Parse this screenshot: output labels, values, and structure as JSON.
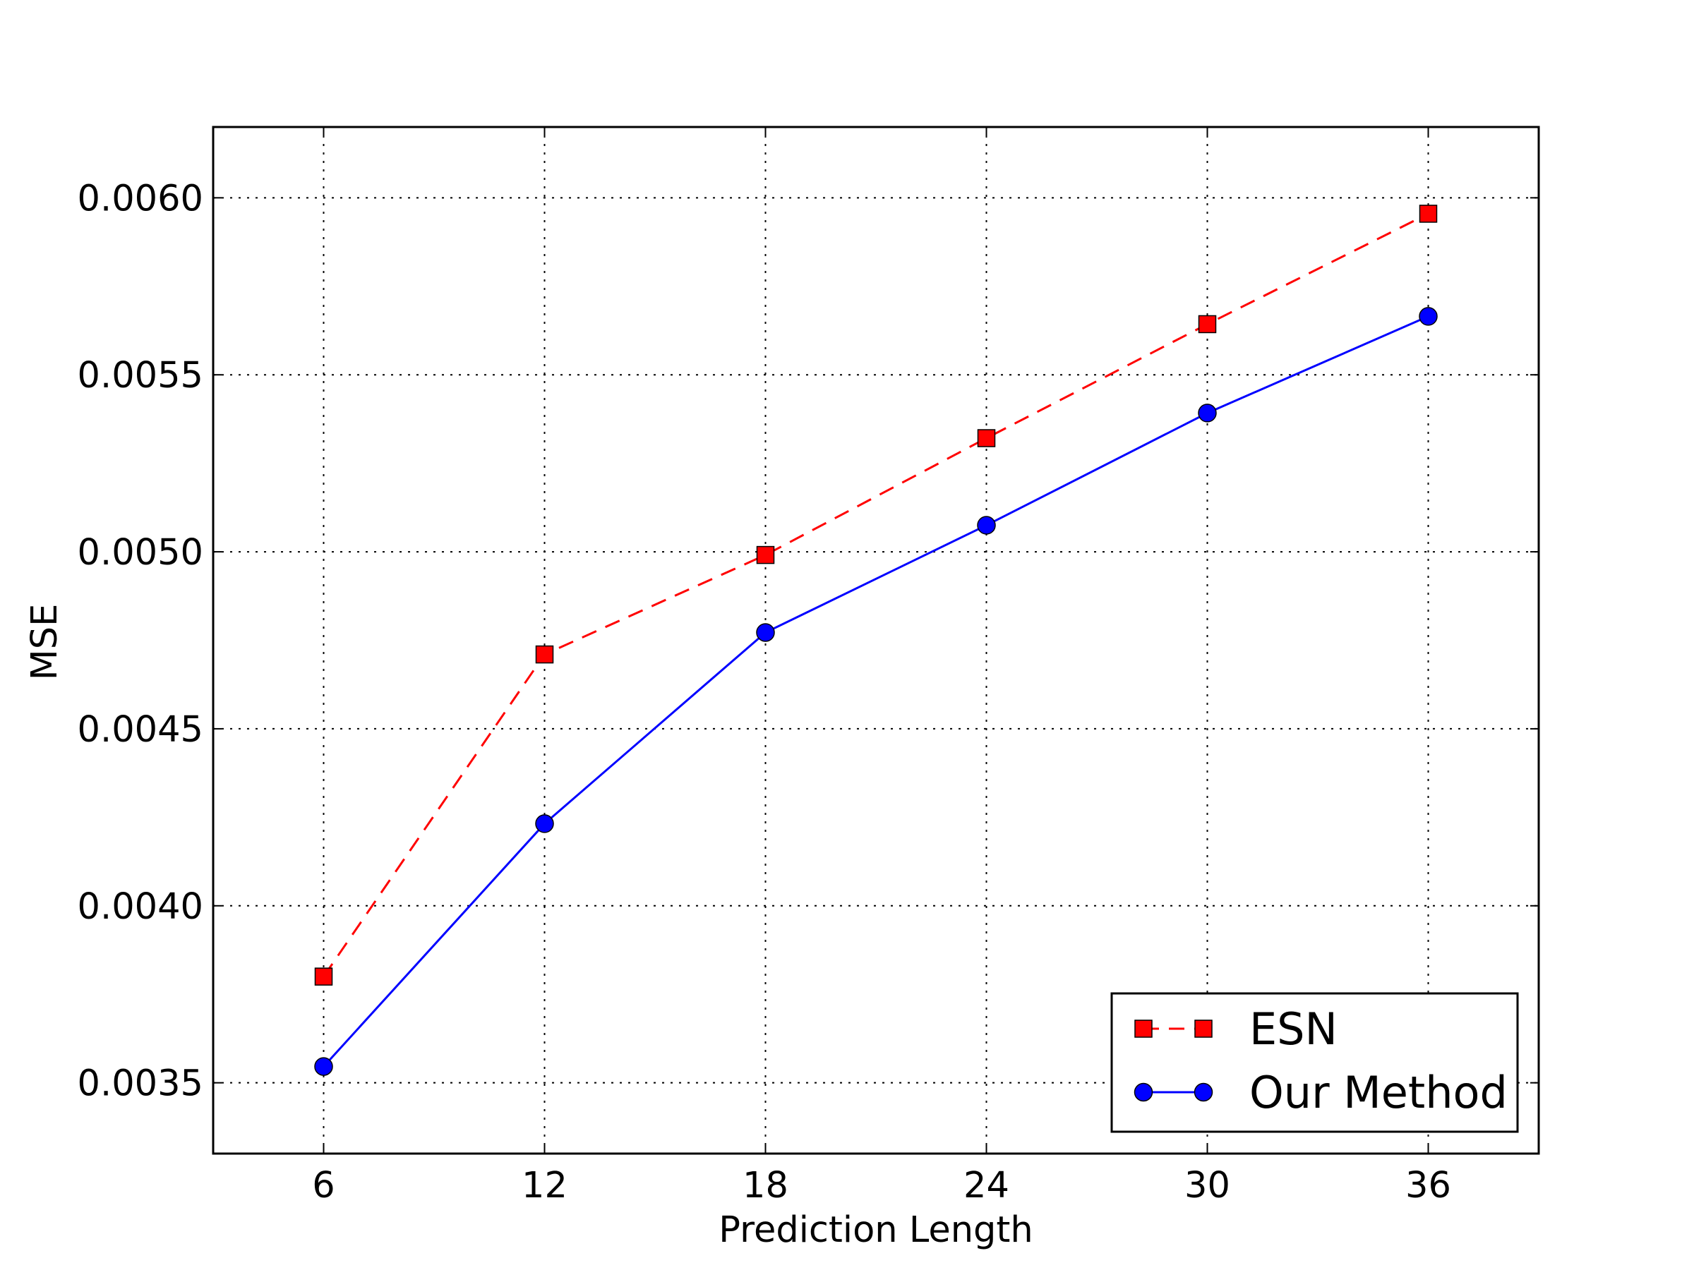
{
  "chart_data": {
    "type": "line",
    "title": "",
    "xlabel": "Prediction Length",
    "ylabel": "MSE",
    "x": [
      6,
      12,
      18,
      24,
      30,
      36
    ],
    "x_ticks": [
      "6",
      "12",
      "18",
      "24",
      "30",
      "36"
    ],
    "xlim": [
      3,
      39
    ],
    "ylim": [
      0.0033,
      0.0062
    ],
    "y_ticks": [
      "0.0035",
      "0.0040",
      "0.0045",
      "0.0050",
      "0.0055",
      "0.0060"
    ],
    "grid": true,
    "legend_position": "lower-right",
    "series": [
      {
        "name": "ESN",
        "values": [
          0.0038,
          0.00471,
          0.004991,
          0.005321,
          0.005643,
          0.005955
        ],
        "color": "#ff0000",
        "line_style": "dashed",
        "marker": "square"
      },
      {
        "name": "Our Method",
        "values": [
          0.003546,
          0.004232,
          0.004772,
          0.005075,
          0.005392,
          0.005665
        ],
        "color": "#0000ff",
        "line_style": "solid",
        "marker": "circle"
      }
    ]
  }
}
